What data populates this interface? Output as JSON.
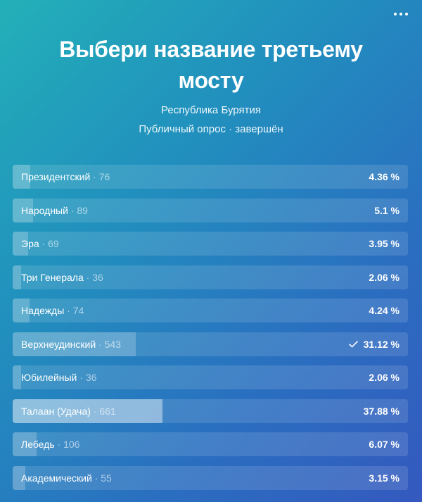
{
  "poll": {
    "title": "Выбери название третьему мосту",
    "subtitle_author": "Республика Бурятия",
    "subtitle_status": "Публичный опрос · завершён",
    "more_icon": "more-horizontal-icon",
    "options": [
      {
        "label": "Президентский",
        "count": "76",
        "percent": "4.36 %",
        "value": 4.36,
        "voted": false
      },
      {
        "label": "Народный",
        "count": "89",
        "percent": "5.1 %",
        "value": 5.1,
        "voted": false
      },
      {
        "label": "Эра",
        "count": "69",
        "percent": "3.95 %",
        "value": 3.95,
        "voted": false
      },
      {
        "label": "Три Генерала",
        "count": "36",
        "percent": "2.06 %",
        "value": 2.06,
        "voted": false
      },
      {
        "label": "Надежды",
        "count": "74",
        "percent": "4.24 %",
        "value": 4.24,
        "voted": false
      },
      {
        "label": "Верхнеудинский",
        "count": "543",
        "percent": "31.12 %",
        "value": 31.12,
        "voted": true
      },
      {
        "label": "Юбилейный",
        "count": "36",
        "percent": "2.06 %",
        "value": 2.06,
        "voted": false
      },
      {
        "label": "Талаан (Удача)",
        "count": "661",
        "percent": "37.88 %",
        "value": 37.88,
        "voted": false
      },
      {
        "label": "Лебедь",
        "count": "106",
        "percent": "6.07 %",
        "value": 6.07,
        "voted": false
      },
      {
        "label": "Академический",
        "count": "55",
        "percent": "3.15 %",
        "value": 3.15,
        "voted": false
      }
    ]
  }
}
